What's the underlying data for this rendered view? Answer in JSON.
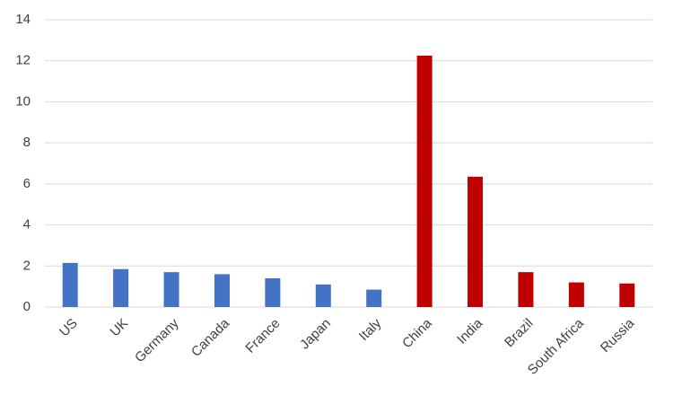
{
  "chart_data": {
    "type": "bar",
    "categories": [
      "US",
      "UK",
      "Germany",
      "Canada",
      "France",
      "Japan",
      "Italy",
      "China",
      "India",
      "Brazil",
      "South Africa",
      "Russia"
    ],
    "values": [
      2.15,
      1.85,
      1.7,
      1.6,
      1.4,
      1.1,
      0.85,
      12.25,
      6.35,
      1.7,
      1.2,
      1.15
    ],
    "colors": [
      "#4472c4",
      "#4472c4",
      "#4472c4",
      "#4472c4",
      "#4472c4",
      "#4472c4",
      "#4472c4",
      "#c00000",
      "#c00000",
      "#c00000",
      "#c00000",
      "#c00000"
    ],
    "ylim": [
      0,
      14
    ],
    "yticks": [
      0,
      2,
      4,
      6,
      8,
      10,
      12,
      14
    ],
    "grid": true
  }
}
